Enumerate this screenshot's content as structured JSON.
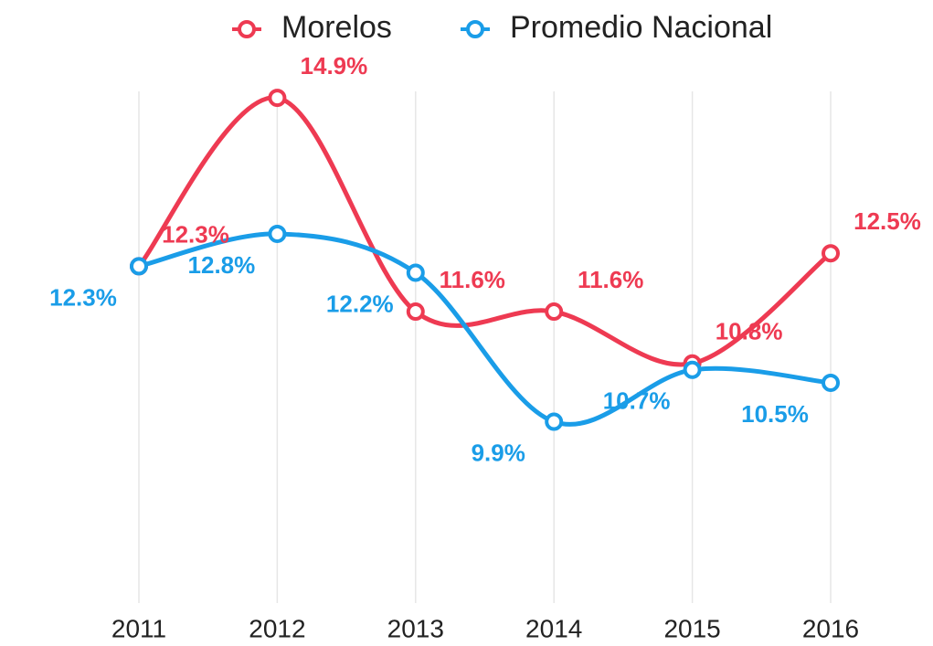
{
  "chart_data": {
    "type": "line",
    "categories": [
      "2011",
      "2012",
      "2013",
      "2014",
      "2015",
      "2016"
    ],
    "series": [
      {
        "name": "Morelos",
        "color": "#ee3a52",
        "values": [
          12.3,
          14.9,
          11.6,
          11.6,
          10.8,
          12.5
        ],
        "value_labels": [
          "12.3%",
          "14.9%",
          "11.6%",
          "11.6%",
          "10.8%",
          "12.5%"
        ]
      },
      {
        "name": "Promedio Nacional",
        "color": "#1a9de8",
        "values": [
          12.3,
          12.8,
          12.2,
          9.9,
          10.7,
          10.5
        ],
        "value_labels": [
          "12.3%",
          "12.8%",
          "12.2%",
          "9.9%",
          "10.7%",
          "10.5%"
        ]
      }
    ],
    "ylim": [
      7.1,
      15.0
    ],
    "grid": true,
    "legend": "top"
  }
}
